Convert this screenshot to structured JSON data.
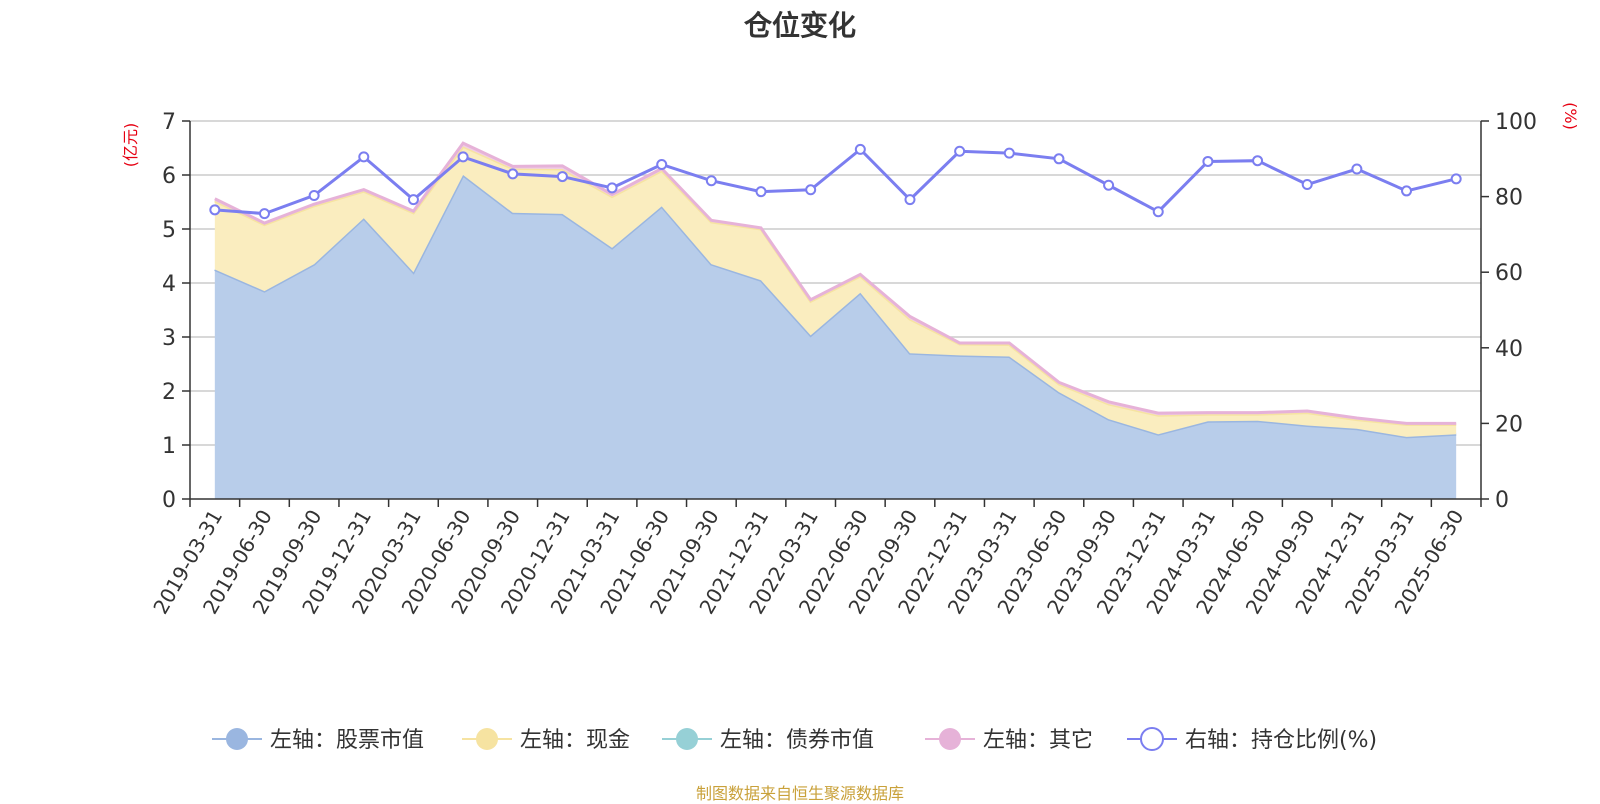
{
  "title": "仓位变化",
  "source": "制图数据来自恒生聚源数据库",
  "chart_data": {
    "type": "area",
    "left_axis": {
      "unit": "(亿元)",
      "min": 0,
      "max": 7,
      "ticks": [
        0,
        1,
        2,
        3,
        4,
        5,
        6,
        7
      ]
    },
    "right_axis": {
      "unit": "(%)",
      "min": 0,
      "max": 100,
      "ticks": [
        0,
        20,
        40,
        60,
        80,
        100
      ]
    },
    "grid": true,
    "legend_position": "bottom-center",
    "categories": [
      "2019-03-31",
      "2019-06-30",
      "2019-09-30",
      "2019-12-31",
      "2020-03-31",
      "2020-06-30",
      "2020-09-30",
      "2020-12-31",
      "2021-03-31",
      "2021-06-30",
      "2021-09-30",
      "2021-12-31",
      "2022-03-31",
      "2022-06-30",
      "2022-09-30",
      "2022-12-31",
      "2023-03-31",
      "2023-06-30",
      "2023-09-30",
      "2023-12-31",
      "2024-03-31",
      "2024-06-30",
      "2024-09-30",
      "2024-12-31",
      "2025-03-31",
      "2025-06-30"
    ],
    "series": [
      {
        "name": "左轴：股票市值",
        "axis": "left",
        "color": "#9ab6e0",
        "fill": "#b8cdea",
        "values": [
          4.25,
          3.85,
          4.35,
          5.2,
          4.2,
          6.0,
          5.3,
          5.28,
          4.65,
          5.42,
          4.35,
          4.05,
          3.03,
          3.82,
          2.7,
          2.66,
          2.64,
          1.98,
          1.48,
          1.2,
          1.44,
          1.45,
          1.36,
          1.3,
          1.15,
          1.2
        ]
      },
      {
        "name": "左轴：现金",
        "axis": "left",
        "color": "#f6e3a1",
        "fill": "#faedbf",
        "values": [
          1.27,
          1.23,
          1.08,
          0.5,
          1.1,
          0.53,
          0.82,
          0.83,
          0.95,
          0.66,
          0.78,
          0.95,
          0.63,
          0.31,
          0.63,
          0.21,
          0.22,
          0.15,
          0.28,
          0.35,
          0.13,
          0.12,
          0.24,
          0.17,
          0.23,
          0.18
        ]
      },
      {
        "name": "左轴：债券市值",
        "axis": "left",
        "color": "#96d0d6",
        "fill": "#b6dfe3",
        "values": [
          0,
          0,
          0,
          0,
          0,
          0,
          0,
          0,
          0,
          0,
          0,
          0,
          0,
          0,
          0,
          0,
          0,
          0,
          0,
          0,
          0,
          0,
          0,
          0,
          0,
          0
        ]
      },
      {
        "name": "左轴：其它",
        "axis": "left",
        "color": "#e6b2d8",
        "fill": "#f0cde6",
        "values": [
          0.04,
          0.03,
          0.03,
          0.03,
          0.03,
          0.06,
          0.04,
          0.06,
          0.04,
          0.04,
          0.03,
          0.02,
          0.03,
          0.03,
          0.05,
          0.02,
          0.03,
          0.03,
          0.04,
          0.04,
          0.03,
          0.03,
          0.03,
          0.03,
          0.02,
          0.02
        ]
      },
      {
        "name": "右轴：持仓比例(%)",
        "axis": "right",
        "color": "#7b7ef0",
        "values": [
          76.5,
          75.5,
          80.3,
          90.5,
          79.2,
          90.5,
          86.0,
          85.3,
          82.3,
          88.5,
          84.2,
          81.3,
          81.8,
          92.5,
          79.2,
          92.0,
          91.5,
          90.0,
          83.0,
          76.0,
          89.3,
          89.5,
          83.2,
          87.3,
          81.5,
          84.7
        ]
      }
    ]
  }
}
